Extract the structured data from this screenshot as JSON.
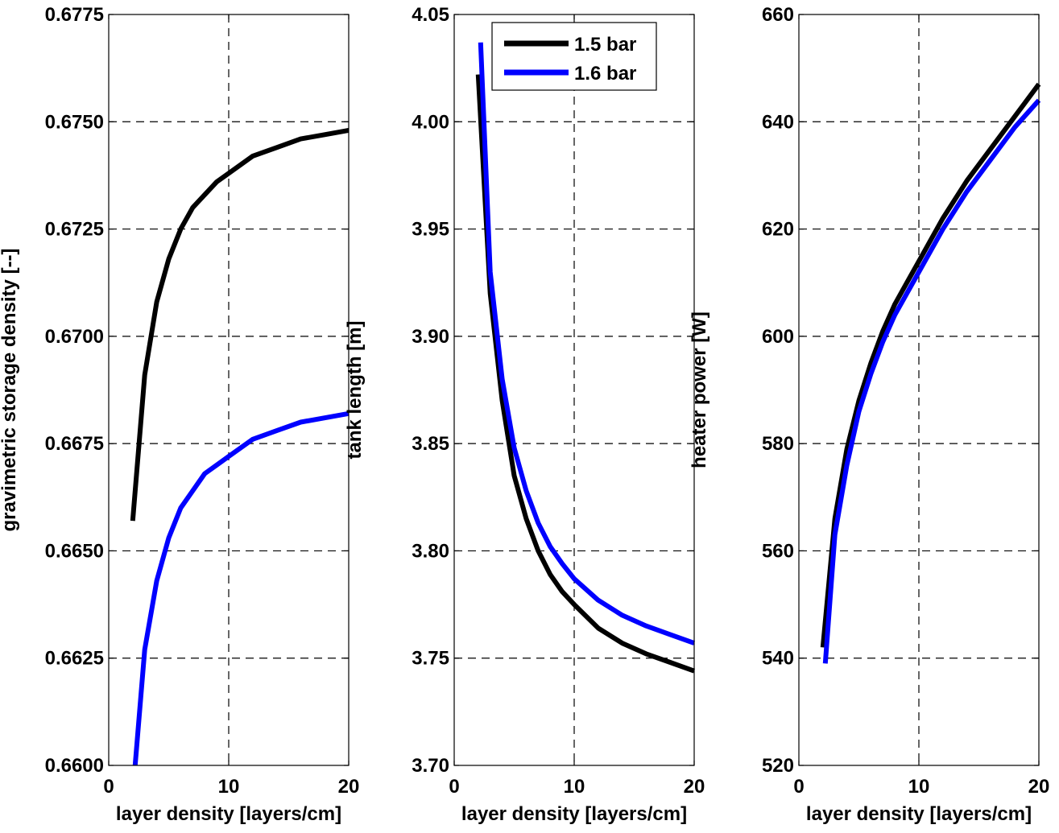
{
  "chart_data": [
    {
      "type": "line",
      "xlabel": "layer density [layers/cm]",
      "ylabel": "gravimetric storage density [--]",
      "xlim": [
        0,
        20
      ],
      "ylim": [
        0.66,
        0.6775
      ],
      "x_ticks": [
        "0",
        "10",
        "20"
      ],
      "y_ticks": [
        "0.6600",
        "0.6625",
        "0.6650",
        "0.6675",
        "0.6700",
        "0.6725",
        "0.6750",
        "0.6775"
      ],
      "grid": true,
      "series": [
        {
          "name": "1.5 bar",
          "color": "#000000",
          "x": [
            2,
            3,
            4,
            5,
            6,
            7,
            8,
            9,
            10,
            12,
            14,
            16,
            18,
            20
          ],
          "y": [
            0.6657,
            0.6691,
            0.6708,
            0.6718,
            0.6725,
            0.673,
            0.6733,
            0.6736,
            0.6738,
            0.6742,
            0.6744,
            0.6746,
            0.6747,
            0.6748
          ]
        },
        {
          "name": "1.6 bar",
          "color": "#0000ff",
          "x": [
            2.2,
            3,
            4,
            5,
            6,
            7,
            8,
            9,
            10,
            12,
            14,
            16,
            18,
            20
          ],
          "y": [
            0.66,
            0.6627,
            0.6643,
            0.6653,
            0.666,
            0.6664,
            0.6668,
            0.667,
            0.6672,
            0.6676,
            0.6678,
            0.668,
            0.6681,
            0.6682
          ]
        }
      ]
    },
    {
      "type": "line",
      "xlabel": "layer density [layers/cm]",
      "ylabel": "tank length [m]",
      "xlim": [
        0,
        20
      ],
      "ylim": [
        3.7,
        4.05
      ],
      "x_ticks": [
        "0",
        "10",
        "20"
      ],
      "y_ticks": [
        "3.70",
        "3.75",
        "3.80",
        "3.85",
        "3.90",
        "3.95",
        "4.00",
        "4.05"
      ],
      "grid": true,
      "legend": {
        "position": "top-right",
        "entries": [
          "1.5 bar",
          "1.6 bar"
        ]
      },
      "series": [
        {
          "name": "1.5 bar",
          "color": "#000000",
          "x": [
            2,
            3,
            4,
            5,
            6,
            7,
            8,
            9,
            10,
            12,
            14,
            16,
            18,
            20
          ],
          "y": [
            4.022,
            3.92,
            3.87,
            3.835,
            3.815,
            3.8,
            3.789,
            3.781,
            3.775,
            3.764,
            3.757,
            3.752,
            3.748,
            3.744
          ]
        },
        {
          "name": "1.6 bar",
          "color": "#0000ff",
          "x": [
            2.2,
            3,
            4,
            5,
            6,
            7,
            8,
            9,
            10,
            12,
            14,
            16,
            18,
            20
          ],
          "y": [
            4.037,
            3.93,
            3.88,
            3.848,
            3.828,
            3.813,
            3.802,
            3.794,
            3.787,
            3.777,
            3.77,
            3.765,
            3.761,
            3.757
          ]
        }
      ]
    },
    {
      "type": "line",
      "xlabel": "layer density [layers/cm]",
      "ylabel": "heater power [W]",
      "xlim": [
        0,
        20
      ],
      "ylim": [
        520,
        660
      ],
      "x_ticks": [
        "0",
        "10",
        "20"
      ],
      "y_ticks": [
        "520",
        "540",
        "560",
        "580",
        "600",
        "620",
        "640",
        "660"
      ],
      "grid": true,
      "series": [
        {
          "name": "1.5 bar",
          "color": "#000000",
          "x": [
            2,
            3,
            4,
            5,
            6,
            7,
            8,
            9,
            10,
            12,
            14,
            16,
            18,
            20
          ],
          "y": [
            542,
            566,
            579,
            588,
            595,
            601,
            606,
            610,
            614,
            622,
            629,
            635,
            641,
            647
          ]
        },
        {
          "name": "1.6 bar",
          "color": "#0000ff",
          "x": [
            2.2,
            3,
            4,
            5,
            6,
            7,
            8,
            9,
            10,
            12,
            14,
            16,
            18,
            20
          ],
          "y": [
            539,
            563,
            576,
            586,
            593,
            599,
            604,
            608,
            612,
            620,
            627,
            633,
            639,
            644
          ]
        }
      ]
    }
  ]
}
